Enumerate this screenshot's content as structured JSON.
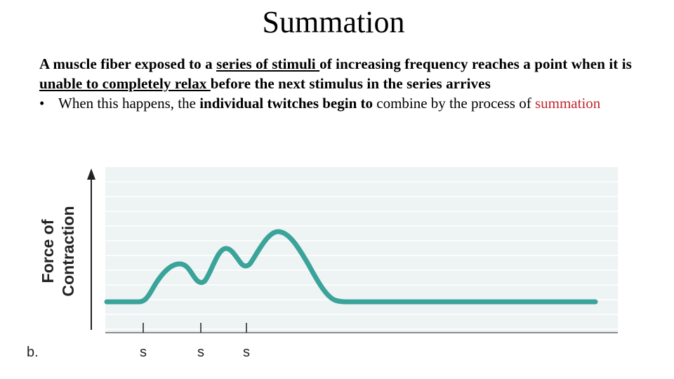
{
  "slide": {
    "title": "Summation"
  },
  "paragraph": {
    "part1": "A muscle fiber exposed to a ",
    "link1": "series of stimuli ",
    "part2": "of increasing frequency reaches a point when it is ",
    "link2": "unable to completely relax ",
    "part3": "before the next stimulus in the series arrives"
  },
  "bullet": {
    "marker": "•",
    "part1": "When this happens, the ",
    "bold": "individual twitches begin to",
    "part2": " combine by the process of ",
    "term": "summation"
  },
  "figure": {
    "ylabel_line1": "Force of",
    "ylabel_line2": "Contraction",
    "panel_label": "b.",
    "stimulus_labels": [
      "s",
      "s",
      "s"
    ],
    "colors": {
      "plot_background": "#eef3f3",
      "gridline": "#ffffff",
      "curve": "#3aa39a",
      "axis": "#222222"
    }
  }
}
